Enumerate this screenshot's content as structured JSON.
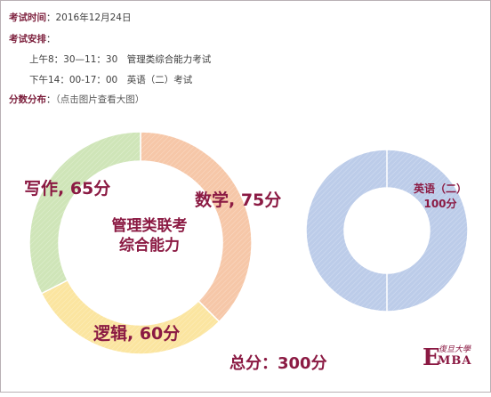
{
  "exam_time": {
    "label": "考试时间",
    "sep": "：",
    "value": "2016年12月24日"
  },
  "exam_schedule": {
    "label": "考试安排",
    "sep": "：",
    "items": [
      "上午8：30—11：30　管理类综合能力考试",
      "下午14：00-17：00　英语（二）考试"
    ]
  },
  "score_dist": {
    "label": "分数分布",
    "sep": "：",
    "note": "（点击图片查看大图）"
  },
  "chart_data": [
    {
      "type": "pie",
      "title": "管理类联考综合能力",
      "categories": [
        "数学",
        "逻辑",
        "写作"
      ],
      "values": [
        75,
        60,
        65
      ],
      "colors": [
        "#f6c7a8",
        "#fbe5a0",
        "#cfe5b8"
      ],
      "edge_colors": [
        "#f0a77c",
        "#f5d46a",
        "#a9d28d"
      ],
      "labels": [
        "数学, 75分",
        "逻辑, 60分",
        "写作, 65分"
      ],
      "center_label_lines": [
        "管理类联考",
        "综合能力"
      ]
    },
    {
      "type": "pie",
      "categories": [
        "英语（二）"
      ],
      "values": [
        100
      ],
      "colors": [
        "#bccce9"
      ],
      "edge_colors": [
        "#93acd8"
      ],
      "labels": [
        "英语（二）",
        "100分"
      ]
    }
  ],
  "total_label": "总分：300分",
  "logo": {
    "seal": "E",
    "text_cn": "復旦大學",
    "text_en": "MBA"
  }
}
